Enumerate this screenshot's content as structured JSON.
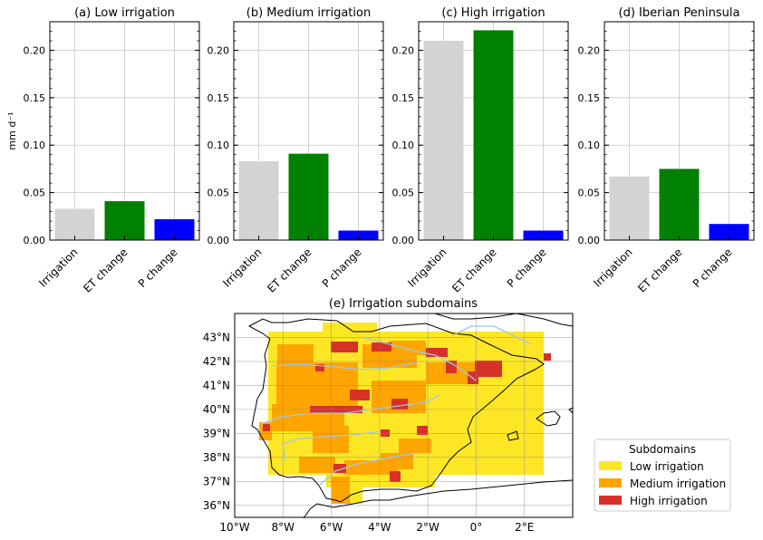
{
  "chart_data": [
    {
      "type": "bar",
      "title": "(a) Low irrigation",
      "ylabel": "mm d⁻¹",
      "categories": [
        "Irrigation",
        "ET change",
        "P change"
      ],
      "values": [
        0.033,
        0.041,
        0.022
      ],
      "ylim": [
        0,
        0.23
      ],
      "yticks": [
        "0.00",
        "0.05",
        "0.10",
        "0.15",
        "0.20"
      ],
      "grid": true
    },
    {
      "type": "bar",
      "title": "(b) Medium irrigation",
      "categories": [
        "Irrigation",
        "ET change",
        "P change"
      ],
      "values": [
        0.083,
        0.091,
        0.01
      ],
      "ylim": [
        0,
        0.23
      ],
      "yticks": [
        "0.00",
        "0.05",
        "0.10",
        "0.15",
        "0.20"
      ],
      "grid": true
    },
    {
      "type": "bar",
      "title": "(c) High irrigation",
      "categories": [
        "Irrigation",
        "ET change",
        "P change"
      ],
      "values": [
        0.21,
        0.221,
        0.01
      ],
      "ylim": [
        0,
        0.23
      ],
      "yticks": [
        "0.00",
        "0.05",
        "0.10",
        "0.15",
        "0.20"
      ],
      "grid": true
    },
    {
      "type": "bar",
      "title": "(d) Iberian Peninsula",
      "categories": [
        "Irrigation",
        "ET change",
        "P change"
      ],
      "values": [
        0.067,
        0.075,
        0.017
      ],
      "ylim": [
        0,
        0.23
      ],
      "yticks": [
        "0.00",
        "0.05",
        "0.10",
        "0.15",
        "0.20"
      ],
      "grid": true
    },
    {
      "type": "heatmap",
      "title": "(e) Irrigation subdomains",
      "xticks": [
        "10°W",
        "8°W",
        "6°W",
        "4°W",
        "2°W",
        "0°",
        "2°E"
      ],
      "yticks": [
        "43°N",
        "42°N",
        "41°N",
        "40°N",
        "39°N",
        "38°N",
        "37°N",
        "36°N"
      ],
      "xlim": [
        -10,
        4
      ],
      "ylim": [
        35.5,
        44
      ],
      "legend_title": "Subdomains",
      "legend": [
        "Low irrigation",
        "Medium irrigation",
        "High irrigation"
      ],
      "legend_position": "lower-right"
    }
  ],
  "colors": {
    "irrigation": "#d3d3d3",
    "et_change": "#008000",
    "p_change": "#0000ff",
    "low": "#fde725",
    "medium": "#ffa500",
    "high": "#d73027",
    "grid": "#c8c8c8",
    "river": "#9ec8ec"
  }
}
